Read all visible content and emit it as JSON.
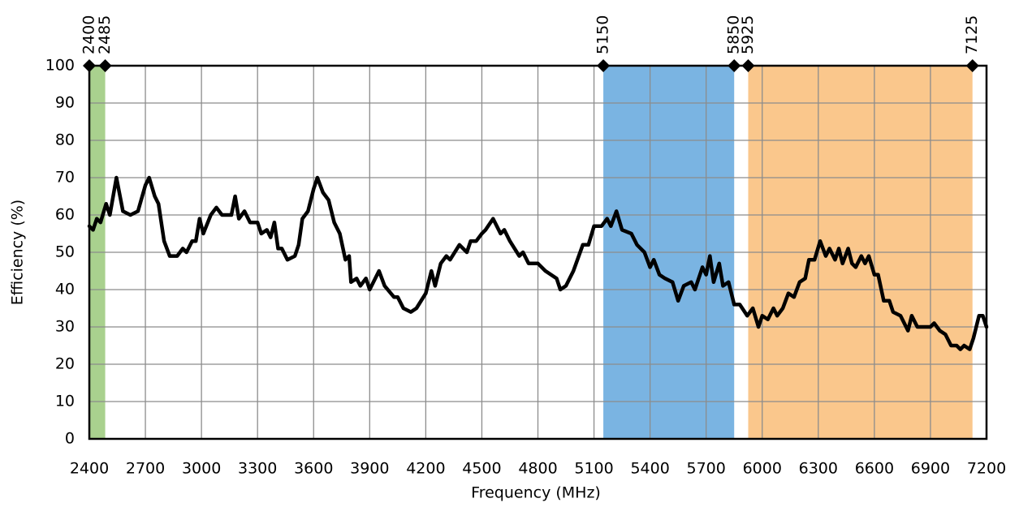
{
  "chart_data": {
    "type": "line",
    "x_label": "Frequency (MHz)",
    "y_label": "Efficiency (%)",
    "color": "#000000",
    "xlim": [
      2400,
      7200
    ],
    "xticks": [
      2400,
      2700,
      3000,
      3300,
      3600,
      3900,
      4200,
      4500,
      4800,
      5100,
      5400,
      5700,
      6000,
      6300,
      6600,
      6900,
      7200
    ],
    "ylim": [
      0,
      100
    ],
    "yticks": [
      0,
      10,
      20,
      30,
      40,
      50,
      60,
      70,
      80,
      90,
      100
    ],
    "grid": true,
    "bands": [
      {
        "start": 2400,
        "end": 2485,
        "color": "#a9d18e"
      },
      {
        "start": 5150,
        "end": 5850,
        "color": "#7ab4e2"
      },
      {
        "start": 5925,
        "end": 7125,
        "color": "#fac78c"
      }
    ],
    "x": [
      2400,
      2420,
      2440,
      2460,
      2490,
      2510,
      2545,
      2580,
      2620,
      2660,
      2700,
      2720,
      2750,
      2770,
      2800,
      2830,
      2870,
      2900,
      2920,
      2950,
      2970,
      2990,
      3010,
      3050,
      3080,
      3110,
      3160,
      3180,
      3200,
      3230,
      3260,
      3300,
      3320,
      3350,
      3370,
      3390,
      3410,
      3430,
      3460,
      3500,
      3520,
      3540,
      3570,
      3600,
      3620,
      3650,
      3680,
      3710,
      3740,
      3770,
      3790,
      3800,
      3830,
      3850,
      3880,
      3900,
      3950,
      3980,
      4030,
      4050,
      4080,
      4120,
      4150,
      4200,
      4230,
      4250,
      4280,
      4310,
      4330,
      4380,
      4420,
      4440,
      4470,
      4500,
      4520,
      4560,
      4600,
      4620,
      4650,
      4700,
      4720,
      4750,
      4800,
      4840,
      4870,
      4900,
      4920,
      4950,
      4990,
      5040,
      5070,
      5100,
      5140,
      5170,
      5190,
      5220,
      5250,
      5300,
      5330,
      5370,
      5400,
      5420,
      5450,
      5480,
      5520,
      5550,
      5580,
      5620,
      5640,
      5680,
      5700,
      5720,
      5740,
      5770,
      5790,
      5820,
      5850,
      5880,
      5920,
      5950,
      5980,
      6000,
      6030,
      6060,
      6080,
      6110,
      6140,
      6170,
      6200,
      6230,
      6250,
      6280,
      6310,
      6340,
      6360,
      6390,
      6410,
      6430,
      6460,
      6480,
      6500,
      6530,
      6550,
      6570,
      6600,
      6620,
      6650,
      6680,
      6700,
      6740,
      6780,
      6800,
      6830,
      6870,
      6900,
      6920,
      6950,
      6980,
      7010,
      7040,
      7060,
      7080,
      7110,
      7130,
      7160,
      7180,
      7200
    ],
    "values": [
      57,
      56,
      59,
      58,
      63,
      60,
      70,
      61,
      60,
      61,
      68,
      70,
      65,
      63,
      53,
      49,
      49,
      51,
      50,
      53,
      53,
      59,
      55,
      60,
      62,
      60,
      60,
      65,
      59,
      61,
      58,
      58,
      55,
      56,
      54,
      58,
      51,
      51,
      48,
      49,
      52,
      59,
      61,
      67,
      70,
      66,
      64,
      58,
      55,
      48,
      49,
      42,
      43,
      41,
      43,
      40,
      45,
      41,
      38,
      38,
      35,
      34,
      35,
      39,
      45,
      41,
      47,
      49,
      48,
      52,
      50,
      53,
      53,
      55,
      56,
      59,
      55,
      56,
      53,
      49,
      50,
      47,
      47,
      45,
      44,
      43,
      40,
      41,
      45,
      52,
      52,
      57,
      57,
      59,
      57,
      61,
      56,
      55,
      52,
      50,
      46,
      48,
      44,
      43,
      42,
      37,
      41,
      42,
      40,
      46,
      44,
      49,
      42,
      47,
      41,
      42,
      36,
      36,
      33,
      35,
      30,
      33,
      32,
      35,
      33,
      35,
      39,
      38,
      42,
      43,
      48,
      48,
      53,
      49,
      51,
      48,
      51,
      47,
      51,
      47,
      46,
      49,
      47,
      49,
      44,
      44,
      37,
      37,
      34,
      33,
      29,
      33,
      30,
      30,
      30,
      31,
      29,
      28,
      25,
      25,
      24,
      25,
      24,
      27,
      33,
      33,
      30
    ]
  }
}
